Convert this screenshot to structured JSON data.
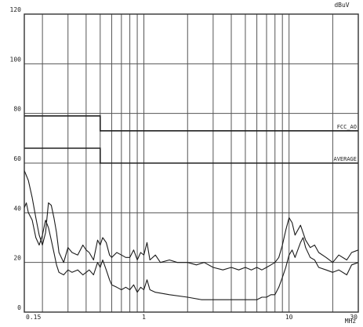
{
  "chart_data": {
    "type": "line",
    "title": "",
    "ylabel": "dBuV",
    "xlabel": "MHz",
    "x_scale": "log",
    "xlim": [
      0.15,
      30
    ],
    "ylim": [
      0,
      120
    ],
    "grid": true,
    "y_ticks": [
      0,
      20,
      40,
      60,
      80,
      100,
      120
    ],
    "y_tick_labels": [
      "0",
      "20",
      "40",
      "60",
      "80",
      "100",
      "120"
    ],
    "x_tick_labels": [
      {
        "value": 0.15,
        "label": "0.15"
      },
      {
        "value": 1,
        "label": "1"
      },
      {
        "value": 10,
        "label": "10"
      },
      {
        "value": 30,
        "label": "30"
      }
    ],
    "x_grid_values": [
      0.15,
      0.2,
      0.3,
      0.4,
      0.5,
      0.6,
      0.7,
      0.8,
      0.9,
      1,
      2,
      3,
      4,
      5,
      6,
      7,
      8,
      9,
      10,
      20,
      30
    ],
    "limit_lines": [
      {
        "name": "FCC_AO",
        "points": [
          [
            0.15,
            79
          ],
          [
            0.5,
            79
          ],
          [
            0.5,
            73
          ],
          [
            30,
            73
          ]
        ]
      },
      {
        "name": "AVERAGE",
        "points": [
          [
            0.15,
            66
          ],
          [
            0.5,
            66
          ],
          [
            0.5,
            60
          ],
          [
            30,
            60
          ]
        ]
      }
    ],
    "series": [
      {
        "points": [
          [
            0.15,
            57
          ],
          [
            0.16,
            53
          ],
          [
            0.17,
            46
          ],
          [
            0.18,
            38
          ],
          [
            0.19,
            31
          ],
          [
            0.2,
            27
          ],
          [
            0.21,
            32
          ],
          [
            0.22,
            44
          ],
          [
            0.23,
            43
          ],
          [
            0.24,
            38
          ],
          [
            0.25,
            32
          ],
          [
            0.26,
            24
          ],
          [
            0.28,
            20
          ],
          [
            0.3,
            26
          ],
          [
            0.32,
            24
          ],
          [
            0.35,
            23
          ],
          [
            0.38,
            27
          ],
          [
            0.4,
            25
          ],
          [
            0.42,
            24
          ],
          [
            0.45,
            21
          ],
          [
            0.48,
            29
          ],
          [
            0.5,
            27
          ],
          [
            0.52,
            30
          ],
          [
            0.55,
            28
          ],
          [
            0.58,
            23
          ],
          [
            0.6,
            22
          ],
          [
            0.65,
            24
          ],
          [
            0.7,
            23
          ],
          [
            0.75,
            22
          ],
          [
            0.8,
            22
          ],
          [
            0.85,
            25
          ],
          [
            0.9,
            21
          ],
          [
            0.95,
            24
          ],
          [
            1.0,
            23
          ],
          [
            1.05,
            28
          ],
          [
            1.1,
            21
          ],
          [
            1.2,
            23
          ],
          [
            1.3,
            20
          ],
          [
            1.5,
            21
          ],
          [
            1.7,
            20
          ],
          [
            2.0,
            20
          ],
          [
            2.3,
            19
          ],
          [
            2.6,
            20
          ],
          [
            3.0,
            18
          ],
          [
            3.5,
            17
          ],
          [
            4.0,
            18
          ],
          [
            4.5,
            17
          ],
          [
            5.0,
            18
          ],
          [
            5.5,
            17
          ],
          [
            6.0,
            18
          ],
          [
            6.5,
            17
          ],
          [
            7.0,
            18
          ],
          [
            7.5,
            19
          ],
          [
            8.0,
            20
          ],
          [
            8.5,
            22
          ],
          [
            9.0,
            27
          ],
          [
            9.5,
            33
          ],
          [
            10.0,
            38
          ],
          [
            10.5,
            36
          ],
          [
            11,
            31
          ],
          [
            12,
            35
          ],
          [
            13,
            29
          ],
          [
            14,
            26
          ],
          [
            15,
            27
          ],
          [
            16,
            24
          ],
          [
            18,
            22
          ],
          [
            20,
            20
          ],
          [
            22,
            23
          ],
          [
            25,
            21
          ],
          [
            27,
            24
          ],
          [
            30,
            25
          ]
        ]
      },
      {
        "points": [
          [
            0.15,
            42
          ],
          [
            0.155,
            44
          ],
          [
            0.16,
            40
          ],
          [
            0.17,
            37
          ],
          [
            0.18,
            30
          ],
          [
            0.19,
            27
          ],
          [
            0.2,
            31
          ],
          [
            0.21,
            37
          ],
          [
            0.22,
            34
          ],
          [
            0.23,
            29
          ],
          [
            0.24,
            24
          ],
          [
            0.25,
            19
          ],
          [
            0.26,
            16
          ],
          [
            0.28,
            15
          ],
          [
            0.3,
            17
          ],
          [
            0.32,
            16
          ],
          [
            0.35,
            17
          ],
          [
            0.38,
            15
          ],
          [
            0.4,
            16
          ],
          [
            0.42,
            17
          ],
          [
            0.45,
            15
          ],
          [
            0.48,
            20
          ],
          [
            0.5,
            18
          ],
          [
            0.52,
            21
          ],
          [
            0.55,
            17
          ],
          [
            0.58,
            13
          ],
          [
            0.6,
            11
          ],
          [
            0.65,
            10
          ],
          [
            0.7,
            9
          ],
          [
            0.75,
            10
          ],
          [
            0.8,
            9
          ],
          [
            0.85,
            11
          ],
          [
            0.9,
            8
          ],
          [
            0.95,
            10
          ],
          [
            1.0,
            9
          ],
          [
            1.05,
            13
          ],
          [
            1.1,
            9
          ],
          [
            1.2,
            8
          ],
          [
            1.5,
            7
          ],
          [
            2.0,
            6
          ],
          [
            2.5,
            5
          ],
          [
            3,
            5
          ],
          [
            3.5,
            5
          ],
          [
            4,
            5
          ],
          [
            4.5,
            5
          ],
          [
            5,
            5
          ],
          [
            5.5,
            5
          ],
          [
            6,
            5
          ],
          [
            6.5,
            6
          ],
          [
            7,
            6
          ],
          [
            7.5,
            7
          ],
          [
            8,
            7
          ],
          [
            8.5,
            10
          ],
          [
            9,
            14
          ],
          [
            9.5,
            18
          ],
          [
            10,
            23
          ],
          [
            10.5,
            25
          ],
          [
            11,
            22
          ],
          [
            12,
            28
          ],
          [
            12.5,
            30
          ],
          [
            13,
            26
          ],
          [
            14,
            22
          ],
          [
            15,
            21
          ],
          [
            16,
            18
          ],
          [
            18,
            17
          ],
          [
            20,
            16
          ],
          [
            22,
            17
          ],
          [
            25,
            15
          ],
          [
            27,
            19
          ],
          [
            30,
            20
          ]
        ]
      }
    ]
  }
}
